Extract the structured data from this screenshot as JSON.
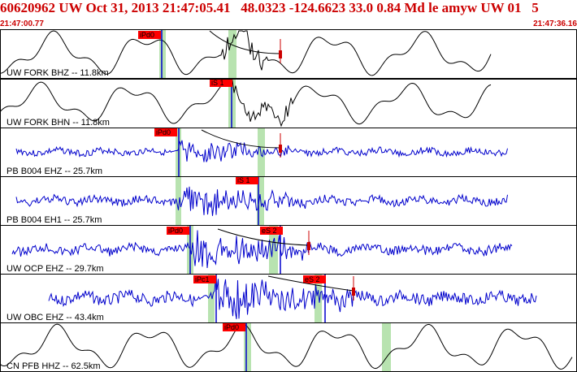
{
  "header": {
    "title": "60620962 UW Oct 31, 2013 21:47:05.41   48.0323 -124.6623 33.0 0.84 Md le amyw UW 01   5",
    "start_time": "21:47:00.77",
    "end_time": "21:47:36.16"
  },
  "colors": {
    "header_text": "#cc0000",
    "pick_box": "#ff0000",
    "pick_window": "#b8e3b0",
    "trace_black": "#000000",
    "trace_blue": "#0000cc",
    "panel_border": "#000000"
  },
  "traces": [
    {
      "label": "UW FORK BHZ -- 11.8km",
      "color": "black",
      "picks": [
        "iPd0"
      ]
    },
    {
      "label": "UW FORK BHN -- 11.8km",
      "color": "black",
      "picks": [
        "iS 1"
      ]
    },
    {
      "label": "PB B004 EHZ -- 25.7km",
      "color": "blue",
      "picks": [
        "iPd0"
      ]
    },
    {
      "label": "PB B004 EH1 -- 25.7km",
      "color": "blue",
      "picks": [
        "iS 1"
      ]
    },
    {
      "label": "UW OCP EHZ -- 29.7km",
      "color": "blue",
      "picks": [
        "iPd0",
        "eS 2"
      ]
    },
    {
      "label": "UW OBC EHZ -- 43.4km",
      "color": "blue",
      "picks": [
        "iPc1",
        "eS 2"
      ]
    },
    {
      "label": "CN PFB HHZ -- 62.5km",
      "color": "black",
      "picks": [
        "iPd0"
      ]
    }
  ]
}
